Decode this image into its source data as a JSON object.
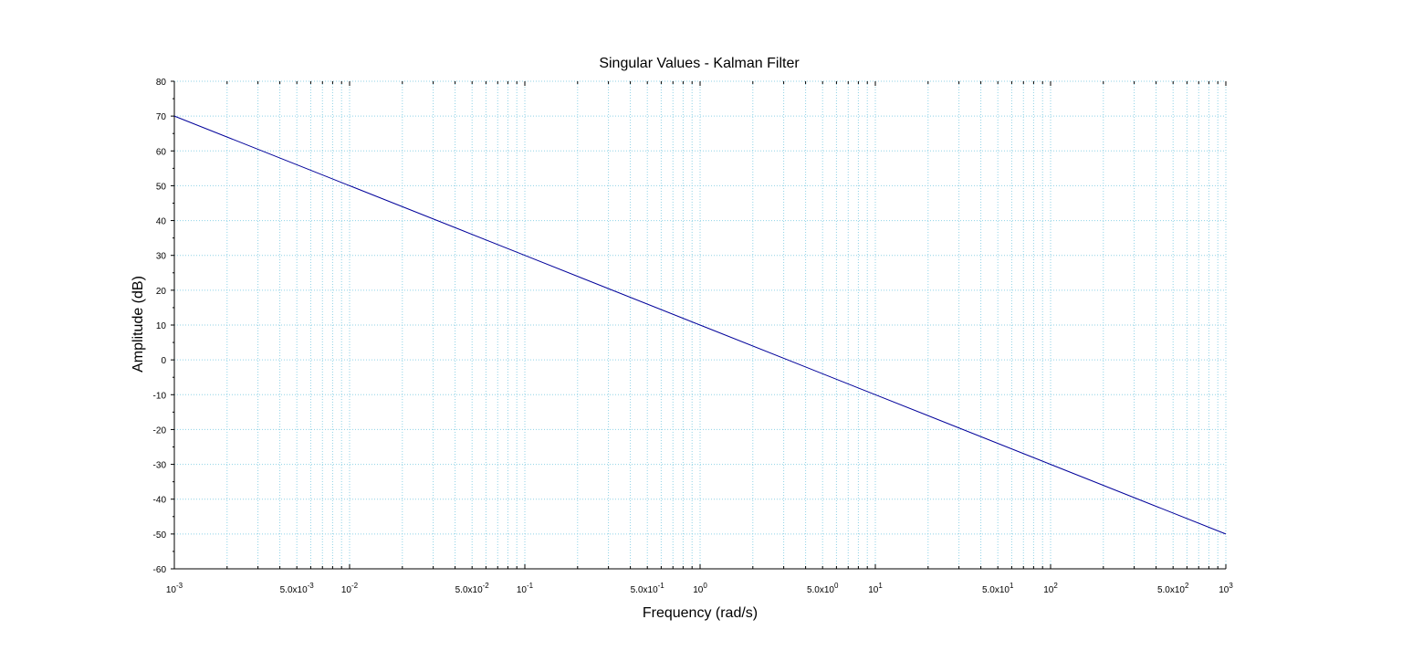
{
  "chart_data": {
    "type": "line",
    "title": "Singular Values - Kalman Filter",
    "xlabel": "Frequency (rad/s)",
    "ylabel": "Amplitude (dB)",
    "xscale": "log",
    "xlim": [
      0.001,
      1000
    ],
    "ylim": [
      -60,
      80
    ],
    "grid": true,
    "line_color": "#00009a",
    "grid_color": "#8fd2e6",
    "y_ticks": [
      80,
      70,
      60,
      50,
      40,
      30,
      20,
      10,
      0,
      -10,
      -20,
      -30,
      -40,
      -50,
      -60
    ],
    "x_decade_ticks": [
      {
        "value": 0.001,
        "base": "10",
        "exp": "-3"
      },
      {
        "value": 0.01,
        "base": "10",
        "exp": "-2"
      },
      {
        "value": 0.1,
        "base": "10",
        "exp": "-1"
      },
      {
        "value": 1,
        "base": "10",
        "exp": "0"
      },
      {
        "value": 10,
        "base": "10",
        "exp": "1"
      },
      {
        "value": 100,
        "base": "10",
        "exp": "2"
      },
      {
        "value": 1000,
        "base": "10",
        "exp": "3"
      }
    ],
    "x_mid_ticks": [
      {
        "value": 0.005,
        "base": "5.0x10",
        "exp": "-3"
      },
      {
        "value": 0.05,
        "base": "5.0x10",
        "exp": "-2"
      },
      {
        "value": 0.5,
        "base": "5.0x10",
        "exp": "-1"
      },
      {
        "value": 5,
        "base": "5.0x10",
        "exp": "0"
      },
      {
        "value": 50,
        "base": "5.0x10",
        "exp": "1"
      },
      {
        "value": 500,
        "base": "5.0x10",
        "exp": "2"
      }
    ],
    "series": [
      {
        "x": [
          0.001,
          0.01,
          0.1,
          1,
          10,
          100,
          1000
        ],
        "y": [
          70,
          50,
          30,
          10,
          -10,
          -30,
          -50
        ]
      }
    ]
  }
}
